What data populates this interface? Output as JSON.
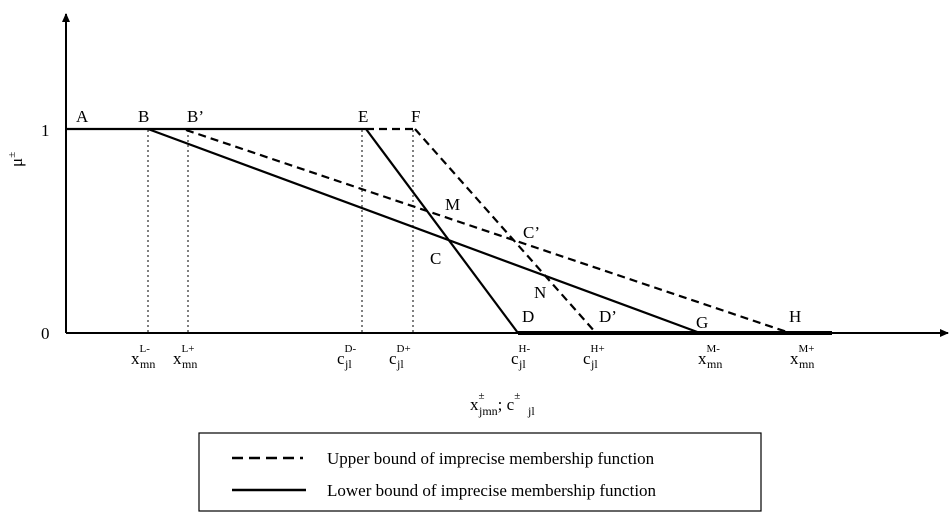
{
  "axes": {
    "y_label": "μ",
    "y_label_sup": "±",
    "y_ticks": [
      "1",
      "0"
    ],
    "x_title_base1": "x",
    "x_title_sub1": "jmn",
    "x_title_sup1": "±",
    "x_title_sep": "; ",
    "x_title_base2": "c",
    "x_title_sub2": "jl",
    "x_title_sup2": "±"
  },
  "x_ticks": [
    {
      "base": "x",
      "sup": "L-",
      "sub": "mn"
    },
    {
      "base": "x",
      "sup": "L+",
      "sub": "mn"
    },
    {
      "base": "c",
      "sup": "D-",
      "sub": "jl"
    },
    {
      "base": "c",
      "sup": "D+",
      "sub": "jl"
    },
    {
      "base": "c",
      "sup": "H-",
      "sub": "jl"
    },
    {
      "base": "c",
      "sup": "H+",
      "sub": "jl"
    },
    {
      "base": "x",
      "sup": "M-",
      "sub": "mn"
    },
    {
      "base": "x",
      "sup": "M+",
      "sub": "mn"
    }
  ],
  "points": [
    "A",
    "B",
    "B’",
    "E",
    "F",
    "M",
    "C’",
    "C",
    "N",
    "D",
    "D’",
    "G",
    "H"
  ],
  "legend": {
    "upper": "Upper bound of imprecise membership function",
    "lower": "Lower bound of imprecise membership function"
  }
}
